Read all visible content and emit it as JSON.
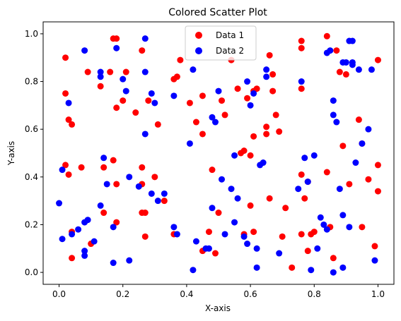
{
  "chart_data": {
    "type": "scatter",
    "title": "Colored Scatter Plot",
    "xlabel": "X-axis",
    "ylabel": "Y-axis",
    "xlim": [
      -0.05,
      1.05
    ],
    "ylim": [
      -0.05,
      1.05
    ],
    "xticks": [
      "0.0",
      "0.2",
      "0.4",
      "0.6",
      "0.8",
      "1.0"
    ],
    "yticks": [
      "0.0",
      "0.2",
      "0.4",
      "0.6",
      "0.8",
      "1.0"
    ],
    "legend_position": "top-center",
    "grid": false,
    "series": [
      {
        "name": "Data 1",
        "color": "#ff0000",
        "points": [
          [
            0.02,
            0.75
          ],
          [
            0.02,
            0.9
          ],
          [
            0.03,
            0.64
          ],
          [
            0.04,
            0.62
          ],
          [
            0.02,
            0.45
          ],
          [
            0.03,
            0.41
          ],
          [
            0.04,
            0.17
          ],
          [
            0.04,
            0.06
          ],
          [
            0.07,
            0.44
          ],
          [
            0.09,
            0.84
          ],
          [
            0.1,
            0.12
          ],
          [
            0.13,
            0.78
          ],
          [
            0.14,
            0.25
          ],
          [
            0.14,
            0.44
          ],
          [
            0.16,
            0.84
          ],
          [
            0.17,
            0.98
          ],
          [
            0.18,
            0.98
          ],
          [
            0.18,
            0.69
          ],
          [
            0.17,
            0.47
          ],
          [
            0.18,
            0.37
          ],
          [
            0.18,
            0.21
          ],
          [
            0.2,
            0.72
          ],
          [
            0.21,
            0.84
          ],
          [
            0.24,
            0.67
          ],
          [
            0.26,
            0.93
          ],
          [
            0.26,
            0.44
          ],
          [
            0.26,
            0.37
          ],
          [
            0.26,
            0.25
          ],
          [
            0.27,
            0.25
          ],
          [
            0.27,
            0.15
          ],
          [
            0.28,
            0.72
          ],
          [
            0.3,
            0.4
          ],
          [
            0.31,
            0.62
          ],
          [
            0.33,
            0.3
          ],
          [
            0.36,
            0.81
          ],
          [
            0.36,
            0.16
          ],
          [
            0.37,
            0.82
          ],
          [
            0.38,
            0.89
          ],
          [
            0.41,
            0.71
          ],
          [
            0.43,
            0.63
          ],
          [
            0.45,
            0.74
          ],
          [
            0.45,
            0.58
          ],
          [
            0.45,
            0.09
          ],
          [
            0.47,
            0.17
          ],
          [
            0.48,
            0.43
          ],
          [
            0.49,
            0.08
          ],
          [
            0.5,
            0.25
          ],
          [
            0.51,
            0.72
          ],
          [
            0.52,
            0.66
          ],
          [
            0.54,
            0.89
          ],
          [
            0.56,
            0.77
          ],
          [
            0.57,
            0.5
          ],
          [
            0.58,
            0.51
          ],
          [
            0.58,
            0.16
          ],
          [
            0.59,
            0.73
          ],
          [
            0.6,
            0.49
          ],
          [
            0.6,
            0.28
          ],
          [
            0.61,
            0.17
          ],
          [
            0.61,
            0.57
          ],
          [
            0.61,
            0.76
          ],
          [
            0.62,
            0.77
          ],
          [
            0.65,
            0.58
          ],
          [
            0.65,
            0.61
          ],
          [
            0.66,
            0.31
          ],
          [
            0.66,
            0.91
          ],
          [
            0.67,
            0.76
          ],
          [
            0.67,
            0.83
          ],
          [
            0.68,
            0.66
          ],
          [
            0.69,
            0.59
          ],
          [
            0.7,
            0.15
          ],
          [
            0.71,
            0.27
          ],
          [
            0.73,
            0.02
          ],
          [
            0.76,
            0.97
          ],
          [
            0.76,
            0.94
          ],
          [
            0.76,
            0.77
          ],
          [
            0.76,
            0.41
          ],
          [
            0.76,
            0.16
          ],
          [
            0.77,
            0.31
          ],
          [
            0.78,
            0.38
          ],
          [
            0.78,
            0.09
          ],
          [
            0.79,
            0.16
          ],
          [
            0.8,
            0.17
          ],
          [
            0.84,
            0.99
          ],
          [
            0.84,
            0.42
          ],
          [
            0.85,
            0.19
          ],
          [
            0.86,
            0.06
          ],
          [
            0.87,
            0.93
          ],
          [
            0.88,
            0.84
          ],
          [
            0.89,
            0.53
          ],
          [
            0.9,
            0.83
          ],
          [
            0.91,
            0.37
          ],
          [
            0.94,
            0.64
          ],
          [
            0.95,
            0.54
          ],
          [
            0.95,
            0.19
          ],
          [
            0.97,
            0.39
          ],
          [
            0.99,
            0.11
          ],
          [
            1.0,
            0.89
          ],
          [
            1.0,
            0.45
          ],
          [
            1.0,
            0.34
          ]
        ]
      },
      {
        "name": "Data 2",
        "color": "#0000ff",
        "points": [
          [
            0.0,
            0.29
          ],
          [
            0.01,
            0.14
          ],
          [
            0.01,
            0.43
          ],
          [
            0.03,
            0.71
          ],
          [
            0.04,
            0.16
          ],
          [
            0.06,
            0.18
          ],
          [
            0.08,
            0.93
          ],
          [
            0.08,
            0.21
          ],
          [
            0.08,
            0.09
          ],
          [
            0.08,
            0.07
          ],
          [
            0.09,
            0.22
          ],
          [
            0.11,
            0.13
          ],
          [
            0.13,
            0.84
          ],
          [
            0.13,
            0.82
          ],
          [
            0.13,
            0.28
          ],
          [
            0.14,
            0.48
          ],
          [
            0.15,
            0.37
          ],
          [
            0.17,
            0.04
          ],
          [
            0.17,
            0.19
          ],
          [
            0.18,
            0.94
          ],
          [
            0.2,
            0.81
          ],
          [
            0.21,
            0.76
          ],
          [
            0.22,
            0.4
          ],
          [
            0.22,
            0.05
          ],
          [
            0.25,
            0.36
          ],
          [
            0.27,
            0.98
          ],
          [
            0.27,
            0.84
          ],
          [
            0.27,
            0.58
          ],
          [
            0.29,
            0.75
          ],
          [
            0.29,
            0.33
          ],
          [
            0.3,
            0.71
          ],
          [
            0.31,
            0.3
          ],
          [
            0.33,
            0.33
          ],
          [
            0.36,
            0.74
          ],
          [
            0.36,
            0.19
          ],
          [
            0.37,
            0.16
          ],
          [
            0.41,
            0.54
          ],
          [
            0.42,
            0.85
          ],
          [
            0.42,
            0.01
          ],
          [
            0.43,
            0.13
          ],
          [
            0.46,
            0.1
          ],
          [
            0.47,
            0.1
          ],
          [
            0.48,
            0.27
          ],
          [
            0.48,
            0.65
          ],
          [
            0.49,
            0.63
          ],
          [
            0.5,
            0.76
          ],
          [
            0.51,
            0.39
          ],
          [
            0.52,
            0.16
          ],
          [
            0.54,
            0.35
          ],
          [
            0.55,
            0.21
          ],
          [
            0.55,
            0.49
          ],
          [
            0.56,
            0.31
          ],
          [
            0.58,
            0.15
          ],
          [
            0.59,
            0.12
          ],
          [
            0.59,
            0.8
          ],
          [
            0.6,
            0.7
          ],
          [
            0.61,
            0.75
          ],
          [
            0.62,
            0.02
          ],
          [
            0.62,
            0.1
          ],
          [
            0.63,
            0.45
          ],
          [
            0.64,
            0.46
          ],
          [
            0.65,
            0.85
          ],
          [
            0.65,
            0.82
          ],
          [
            0.69,
            0.08
          ],
          [
            0.75,
            0.35
          ],
          [
            0.76,
            0.8
          ],
          [
            0.77,
            0.48
          ],
          [
            0.78,
            0.38
          ],
          [
            0.79,
            0.01
          ],
          [
            0.8,
            0.49
          ],
          [
            0.81,
            0.1
          ],
          [
            0.82,
            0.23
          ],
          [
            0.83,
            0.2
          ],
          [
            0.84,
            0.18
          ],
          [
            0.84,
            0.92
          ],
          [
            0.85,
            0.93
          ],
          [
            0.86,
            0.72
          ],
          [
            0.86,
            0.66
          ],
          [
            0.86,
            0.0
          ],
          [
            0.87,
            0.63
          ],
          [
            0.88,
            0.35
          ],
          [
            0.89,
            0.02
          ],
          [
            0.89,
            0.24
          ],
          [
            0.89,
            0.88
          ],
          [
            0.9,
            0.88
          ],
          [
            0.91,
            0.19
          ],
          [
            0.91,
            0.97
          ],
          [
            0.92,
            0.97
          ],
          [
            0.92,
            0.88
          ],
          [
            0.92,
            0.87
          ],
          [
            0.93,
            0.46
          ],
          [
            0.94,
            0.85
          ],
          [
            0.95,
            0.54
          ],
          [
            0.97,
            0.6
          ],
          [
            0.98,
            0.85
          ],
          [
            0.99,
            0.05
          ]
        ]
      }
    ]
  }
}
